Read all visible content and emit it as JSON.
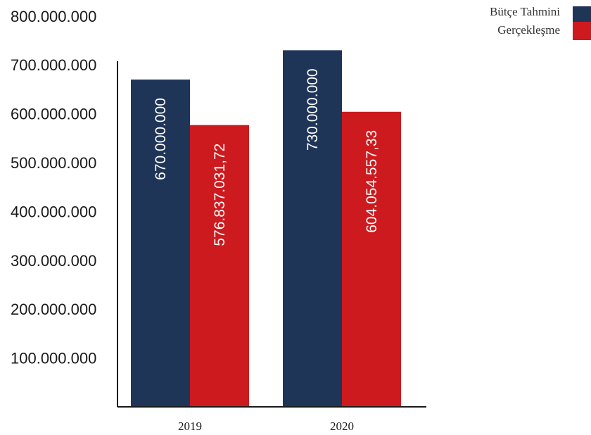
{
  "chart_data": {
    "type": "bar",
    "categories": [
      "2019",
      "2020"
    ],
    "series": [
      {
        "name": "Bütçe Tahmini",
        "color": "#1f3558",
        "values": [
          670000000,
          730000000
        ],
        "labels": [
          "670.000.000",
          "730.000.000"
        ]
      },
      {
        "name": "Gerçekleşme",
        "color": "#cc1a1e",
        "values": [
          576837031.72,
          604054557.33
        ],
        "labels": [
          "576.837.031,72",
          "604.054.557,33"
        ]
      }
    ],
    "y_ticks": [
      {
        "value": 100000000,
        "label": "100.000.000"
      },
      {
        "value": 200000000,
        "label": "200.000.000"
      },
      {
        "value": 300000000,
        "label": "300.000.000"
      },
      {
        "value": 400000000,
        "label": "400.000.000"
      },
      {
        "value": 500000000,
        "label": "500.000.000"
      },
      {
        "value": 600000000,
        "label": "600.000.000"
      },
      {
        "value": 700000000,
        "label": "700.000.000"
      },
      {
        "value": 800000000,
        "label": "800.000.000"
      }
    ],
    "ylim": [
      0,
      800000000
    ],
    "grid": false,
    "legend_position": "top-right",
    "title": "",
    "xlabel": "",
    "ylabel": ""
  }
}
